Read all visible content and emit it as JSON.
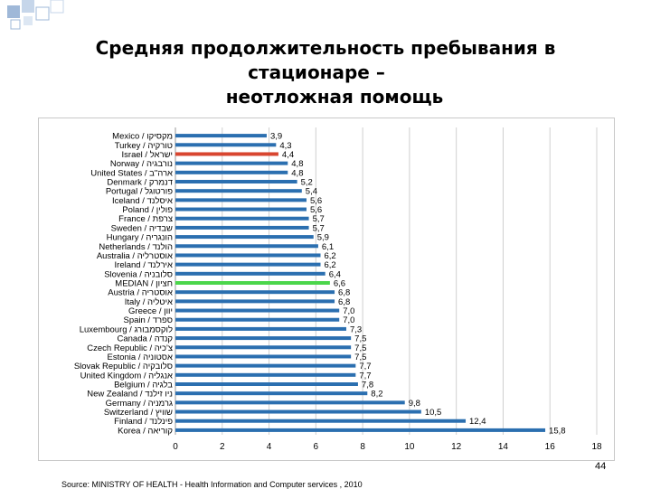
{
  "slide": {
    "title_line1": "Средняя продолжительность пребывания в",
    "title_line2": "стационаре –",
    "title_line3": "неотложная помощь",
    "source": "Source: MINISTRY OF HEALTH - Health Information and Computer services , 2010",
    "page_number": "44"
  },
  "colors": {
    "bar": "#2b6fb0",
    "highlight_israel": "#d8452f",
    "highlight_median": "#4bd64b",
    "gridline": "#d0d0d0",
    "decor": "#9fb8d8"
  },
  "chart_data": {
    "type": "bar",
    "orientation": "horizontal",
    "xlim": [
      0,
      18
    ],
    "xticks": [
      "0",
      "2",
      "4",
      "6",
      "8",
      "10",
      "12",
      "14",
      "16",
      "18"
    ],
    "grid": true,
    "categories": [
      "Mexico / מקסיקו",
      "Turkey / טורקיה",
      "Israel / ישראל",
      "Norway / נורבגיה",
      "United States / ארה\"ב",
      "Denmark / דנמרק",
      "Portugal / פורטוגל",
      "Iceland / איסלנד",
      "Poland / פולין",
      "France / צרפת",
      "Sweden / שבדיה",
      "Hungary / הונגריה",
      "Netherlands / הולנד",
      "Australia / אוסטרליה",
      "Ireland / אירלנד",
      "Slovenia / סלובניה",
      "MEDIAN / חציון",
      "Austria / אוסטריה",
      "Italy / איטליה",
      "Greece / יוון",
      "Spain / ספרד",
      "Luxembourg / לוקסמבורג",
      "Canada / קנדה",
      "Czech Republic / צ'כיה",
      "Estonia / אסטוניה",
      "Slovak Republic / סלובקיה",
      "United Kingdom / אנגליה",
      "Belgium / בלגיה",
      "New Zealand / ניו זילנד",
      "Germany / גרמניה",
      "Switzerland / שוויץ",
      "Finland / פינלנד",
      "Korea / קוריאה"
    ],
    "values": [
      3.9,
      4.3,
      4.4,
      4.8,
      4.8,
      5.2,
      5.4,
      5.6,
      5.6,
      5.7,
      5.7,
      5.9,
      6.1,
      6.2,
      6.2,
      6.4,
      6.6,
      6.8,
      6.8,
      7.0,
      7.0,
      7.3,
      7.5,
      7.5,
      7.5,
      7.7,
      7.7,
      7.8,
      8.2,
      9.8,
      10.5,
      12.4,
      15.8
    ],
    "value_labels": [
      "3,9",
      "4,3",
      "4,4",
      "4,8",
      "4,8",
      "5,2",
      "5,4",
      "5,6",
      "5,6",
      "5,7",
      "5,7",
      "5,9",
      "6,1",
      "6,2",
      "6,2",
      "6,4",
      "6,6",
      "6,8",
      "6,8",
      "7,0",
      "7,0",
      "7,3",
      "7,5",
      "7,5",
      "7,5",
      "7,7",
      "7,7",
      "7,8",
      "8,2",
      "9,8",
      "10,5",
      "12,4",
      "15,8"
    ],
    "highlights": {
      "Israel / ישראל": "highlight_israel",
      "MEDIAN / חציון": "highlight_median"
    }
  }
}
